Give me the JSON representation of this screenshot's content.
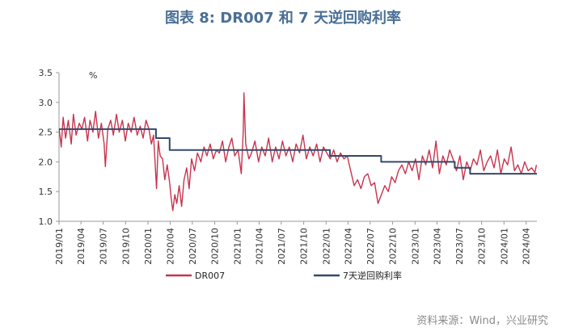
{
  "header": {
    "title": "图表 8:  DR007 和 7 天逆回购利率"
  },
  "footer": {
    "source": "资料来源：Wind，兴业研究"
  },
  "colors": {
    "dr007": "#c8344e",
    "reverse_repo": "#33496b",
    "axis": "#9a9a9a",
    "title": "#4a6f96"
  },
  "chart_data": {
    "type": "line",
    "title": "DR007 和 7 天逆回购利率",
    "ylabel": "%",
    "xlabel": "",
    "ylim": [
      1.0,
      3.5
    ],
    "yticks": [
      1.0,
      1.5,
      2.0,
      2.5,
      3.0,
      3.5
    ],
    "ytick_labels": [
      "1.0",
      "1.5",
      "2.0",
      "2.5",
      "3.0",
      "3.5"
    ],
    "xlim": [
      "2019-01-01",
      "2024-05-15"
    ],
    "xtick_labels": [
      "2019/01",
      "2019/04",
      "2019/07",
      "2019/10",
      "2020/01",
      "2020/04",
      "2020/07",
      "2020/10",
      "2021/01",
      "2021/04",
      "2021/07",
      "2021/10",
      "2022/01",
      "2022/04",
      "2022/07",
      "2022/10",
      "2023/01",
      "2023/04",
      "2023/07",
      "2023/10",
      "2024/01",
      "2024/04"
    ],
    "xtick_dates": [
      "2019-01-01",
      "2019-04-01",
      "2019-07-01",
      "2019-10-01",
      "2020-01-01",
      "2020-04-01",
      "2020-07-01",
      "2020-10-01",
      "2021-01-01",
      "2021-04-01",
      "2021-07-01",
      "2021-10-01",
      "2022-01-01",
      "2022-04-01",
      "2022-07-01",
      "2022-10-01",
      "2023-01-01",
      "2023-04-01",
      "2023-07-01",
      "2023-10-01",
      "2024-01-01",
      "2024-04-01"
    ],
    "legend": {
      "position": "bottom"
    },
    "grid": false,
    "series": [
      {
        "name": "DR007",
        "x": [
          "2019-01-02",
          "2019-01-10",
          "2019-01-18",
          "2019-01-28",
          "2019-02-08",
          "2019-02-20",
          "2019-03-01",
          "2019-03-12",
          "2019-03-25",
          "2019-04-05",
          "2019-04-16",
          "2019-04-28",
          "2019-05-08",
          "2019-05-20",
          "2019-05-31",
          "2019-06-12",
          "2019-06-24",
          "2019-07-05",
          "2019-07-10",
          "2019-07-20",
          "2019-08-01",
          "2019-08-12",
          "2019-08-25",
          "2019-09-05",
          "2019-09-18",
          "2019-09-30",
          "2019-10-12",
          "2019-10-24",
          "2019-11-05",
          "2019-11-18",
          "2019-11-30",
          "2019-12-12",
          "2019-12-24",
          "2020-01-05",
          "2020-01-15",
          "2020-01-24",
          "2020-02-05",
          "2020-02-12",
          "2020-02-20",
          "2020-03-01",
          "2020-03-10",
          "2020-03-20",
          "2020-03-30",
          "2020-04-05",
          "2020-04-12",
          "2020-04-20",
          "2020-04-28",
          "2020-05-08",
          "2020-05-18",
          "2020-05-28",
          "2020-06-08",
          "2020-06-18",
          "2020-06-28",
          "2020-07-10",
          "2020-07-22",
          "2020-08-05",
          "2020-08-18",
          "2020-08-30",
          "2020-09-12",
          "2020-09-25",
          "2020-10-08",
          "2020-10-20",
          "2020-11-02",
          "2020-11-15",
          "2020-11-28",
          "2020-12-10",
          "2020-12-22",
          "2021-01-05",
          "2021-01-18",
          "2021-01-26",
          "2021-01-29",
          "2021-02-05",
          "2021-02-18",
          "2021-03-01",
          "2021-03-15",
          "2021-03-30",
          "2021-04-12",
          "2021-04-26",
          "2021-05-10",
          "2021-05-25",
          "2021-06-08",
          "2021-06-22",
          "2021-07-06",
          "2021-07-20",
          "2021-08-03",
          "2021-08-17",
          "2021-08-31",
          "2021-09-14",
          "2021-09-28",
          "2021-10-12",
          "2021-10-26",
          "2021-11-09",
          "2021-11-23",
          "2021-12-07",
          "2021-12-21",
          "2022-01-04",
          "2022-01-18",
          "2022-02-01",
          "2022-02-15",
          "2022-03-01",
          "2022-03-15",
          "2022-03-29",
          "2022-04-12",
          "2022-04-26",
          "2022-05-10",
          "2022-05-24",
          "2022-06-07",
          "2022-06-21",
          "2022-07-05",
          "2022-07-19",
          "2022-08-02",
          "2022-08-16",
          "2022-08-30",
          "2022-09-13",
          "2022-09-27",
          "2022-10-11",
          "2022-10-25",
          "2022-11-08",
          "2022-11-22",
          "2022-12-06",
          "2022-12-20",
          "2023-01-03",
          "2023-01-17",
          "2023-01-31",
          "2023-02-14",
          "2023-02-28",
          "2023-03-14",
          "2023-03-28",
          "2023-04-11",
          "2023-04-25",
          "2023-05-09",
          "2023-05-23",
          "2023-06-06",
          "2023-06-20",
          "2023-07-04",
          "2023-07-18",
          "2023-08-01",
          "2023-08-15",
          "2023-08-29",
          "2023-09-12",
          "2023-09-26",
          "2023-10-10",
          "2023-10-24",
          "2023-11-07",
          "2023-11-21",
          "2023-12-05",
          "2023-12-19",
          "2024-01-02",
          "2024-01-16",
          "2024-01-30",
          "2024-02-13",
          "2024-02-27",
          "2024-03-12",
          "2024-03-26",
          "2024-04-09",
          "2024-04-23",
          "2024-05-07",
          "2024-05-13"
        ],
        "y": [
          2.55,
          2.25,
          2.75,
          2.4,
          2.7,
          2.3,
          2.8,
          2.45,
          2.65,
          2.55,
          2.75,
          2.35,
          2.7,
          2.5,
          2.85,
          2.4,
          2.65,
          2.3,
          1.92,
          2.55,
          2.7,
          2.45,
          2.8,
          2.5,
          2.7,
          2.35,
          2.65,
          2.5,
          2.75,
          2.45,
          2.6,
          2.4,
          2.7,
          2.55,
          2.3,
          2.45,
          1.55,
          2.35,
          2.1,
          2.05,
          1.7,
          1.95,
          1.65,
          1.4,
          1.18,
          1.45,
          1.3,
          1.6,
          1.25,
          1.7,
          1.9,
          1.55,
          2.05,
          1.85,
          2.15,
          2.0,
          2.25,
          2.1,
          2.3,
          2.05,
          2.2,
          2.15,
          2.35,
          2.0,
          2.25,
          2.4,
          2.1,
          2.2,
          1.8,
          2.5,
          3.16,
          2.3,
          2.05,
          2.15,
          2.35,
          2.0,
          2.25,
          2.1,
          2.4,
          2.0,
          2.25,
          2.05,
          2.35,
          2.1,
          2.25,
          2.0,
          2.3,
          2.15,
          2.45,
          2.05,
          2.25,
          2.1,
          2.3,
          2.0,
          2.25,
          2.15,
          2.05,
          2.2,
          2.0,
          2.15,
          2.05,
          2.1,
          1.85,
          1.6,
          1.7,
          1.55,
          1.75,
          1.8,
          1.6,
          1.65,
          1.3,
          1.45,
          1.6,
          1.5,
          1.75,
          1.65,
          1.85,
          1.95,
          1.8,
          2.0,
          1.85,
          2.05,
          1.7,
          2.1,
          1.95,
          2.2,
          1.9,
          2.35,
          1.8,
          2.1,
          1.95,
          2.2,
          2.05,
          1.85,
          2.1,
          1.7,
          2.0,
          1.85,
          2.05,
          1.95,
          2.2,
          1.85,
          2.0,
          2.1,
          1.9,
          2.2,
          1.8,
          2.05,
          1.95,
          2.25,
          1.85,
          1.95,
          1.8,
          2.0,
          1.85,
          1.9,
          1.82,
          1.95
        ]
      },
      {
        "name": "7天逆回购利率",
        "step": true,
        "x": [
          "2019-01-01",
          "2020-02-03",
          "2020-03-30",
          "2020-12-20",
          "2022-01-17",
          "2022-08-15",
          "2023-06-13",
          "2023-08-15",
          "2024-05-15"
        ],
        "y": [
          2.55,
          2.4,
          2.2,
          2.2,
          2.1,
          2.0,
          1.9,
          1.8,
          1.8
        ]
      }
    ]
  }
}
